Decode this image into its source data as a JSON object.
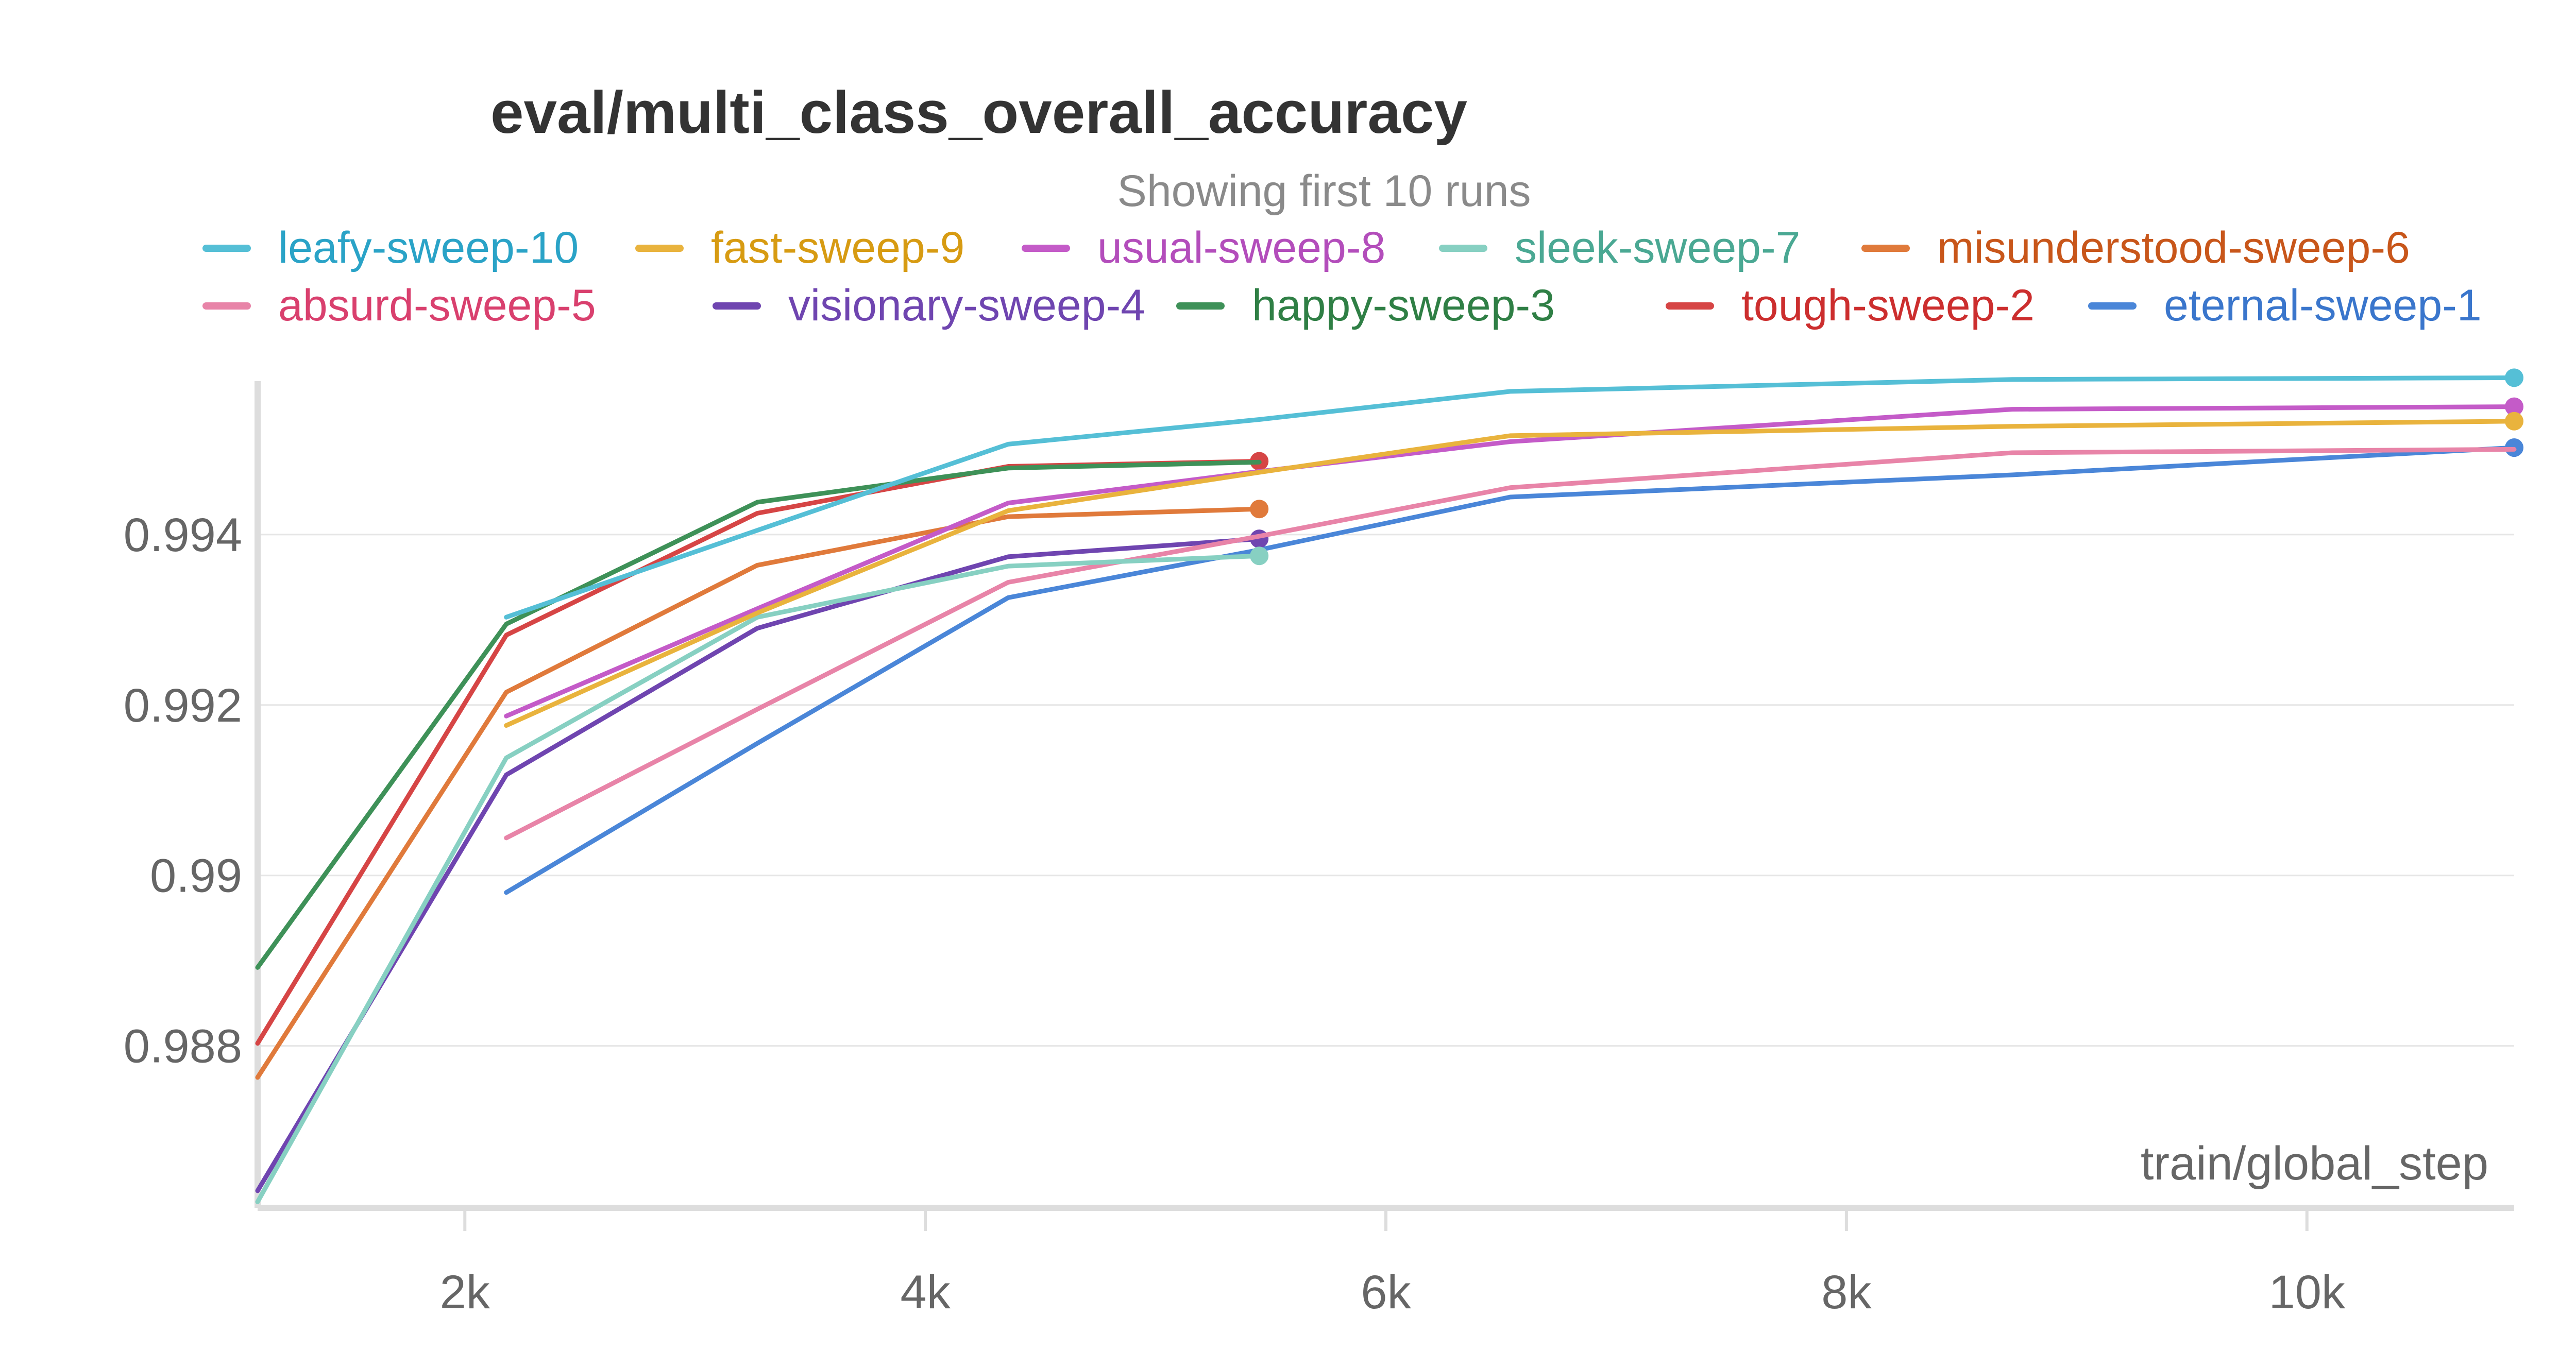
{
  "chart_data": {
    "type": "line",
    "title": "eval/multi_class_overall_accuracy",
    "subtitle": "Showing first 10 runs",
    "xlabel": "train/global_step",
    "ylabel": "",
    "xlim": [
      1100,
      10900
    ],
    "ylim": [
      0.9861,
      0.9958
    ],
    "x_ticks": [
      2000,
      4000,
      6000,
      8000,
      10000
    ],
    "x_tick_labels": [
      "2k",
      "4k",
      "6k",
      "8k",
      "10k"
    ],
    "y_ticks": [
      0.988,
      0.99,
      0.992,
      0.994
    ],
    "y_tick_labels": [
      "0.988",
      "0.99",
      "0.992",
      "0.994"
    ],
    "grid": "horizontal",
    "legend_position": "top",
    "series": [
      {
        "name": "leafy-sweep-10",
        "color": "#55bfd6",
        "x": [
          2180,
          3270,
          4360,
          5450,
          6540,
          8720,
          10900
        ],
        "y": [
          0.99303,
          0.99405,
          0.99506,
          0.99535,
          0.99568,
          0.99582,
          0.99584
        ],
        "end_marker": true
      },
      {
        "name": "fast-sweep-9",
        "color": "#e9b33d",
        "x": [
          2180,
          3270,
          4360,
          5450,
          6540,
          8720,
          10900
        ],
        "y": [
          0.99176,
          0.99308,
          0.99428,
          0.99473,
          0.99516,
          0.99527,
          0.99533
        ],
        "end_marker": true
      },
      {
        "name": "usual-sweep-8",
        "color": "#c45bc8",
        "x": [
          2180,
          3270,
          4360,
          5450,
          6540,
          8720,
          10900
        ],
        "y": [
          0.99187,
          0.99313,
          0.99437,
          0.99474,
          0.99509,
          0.99547,
          0.9955
        ],
        "end_marker": true
      },
      {
        "name": "sleek-sweep-7",
        "color": "#87d0c2",
        "x": [
          1100,
          2180,
          3270,
          4360,
          5450
        ],
        "y": [
          0.98617,
          0.99138,
          0.99303,
          0.99363,
          0.99375
        ],
        "end_marker": true
      },
      {
        "name": "misunderstood-sweep-6",
        "color": "#e07a3b",
        "x": [
          1100,
          2180,
          3270,
          4360,
          5450
        ],
        "y": [
          0.98763,
          0.99215,
          0.99364,
          0.99421,
          0.9943
        ],
        "end_marker": true
      },
      {
        "name": "absurd-sweep-5",
        "color": "#e884a8",
        "x": [
          2180,
          3270,
          4360,
          5450,
          6540,
          8720,
          10900
        ],
        "y": [
          0.99044,
          0.99195,
          0.99344,
          0.99398,
          0.99455,
          0.99496,
          0.995
        ],
        "end_marker": false
      },
      {
        "name": "visionary-sweep-4",
        "color": "#6f45b0",
        "x": [
          1100,
          2180,
          3270,
          4360,
          5450
        ],
        "y": [
          0.9863,
          0.99118,
          0.9929,
          0.99374,
          0.99395
        ],
        "end_marker": true
      },
      {
        "name": "happy-sweep-3",
        "color": "#3e9158",
        "x": [
          1100,
          2180,
          3270,
          4360,
          5450
        ],
        "y": [
          0.98892,
          0.99295,
          0.99438,
          0.99478,
          0.99485
        ],
        "end_marker": false
      },
      {
        "name": "tough-sweep-2",
        "color": "#d64545",
        "x": [
          1100,
          2180,
          3270,
          4360,
          5450
        ],
        "y": [
          0.98803,
          0.99282,
          0.99425,
          0.9948,
          0.99486
        ],
        "end_marker": true
      },
      {
        "name": "eternal-sweep-1",
        "color": "#4a86d8",
        "x": [
          2180,
          3270,
          4360,
          5450,
          6540,
          8720,
          10900
        ],
        "y": [
          0.9898,
          0.99155,
          0.99326,
          0.99382,
          0.99444,
          0.9947,
          0.99502
        ],
        "end_marker": true
      }
    ]
  },
  "legend_text_colors": {
    "leafy-sweep-10": "#2aa3c7",
    "fast-sweep-9": "#d79b12",
    "usual-sweep-8": "#b34dbb",
    "sleek-sweep-7": "#4aa893",
    "misunderstood-sweep-6": "#c8561a",
    "absurd-sweep-5": "#d9406e",
    "visionary-sweep-4": "#6f45b0",
    "happy-sweep-3": "#2f7f45",
    "tough-sweep-2": "#cc2e2e",
    "eternal-sweep-1": "#3a76cc"
  }
}
